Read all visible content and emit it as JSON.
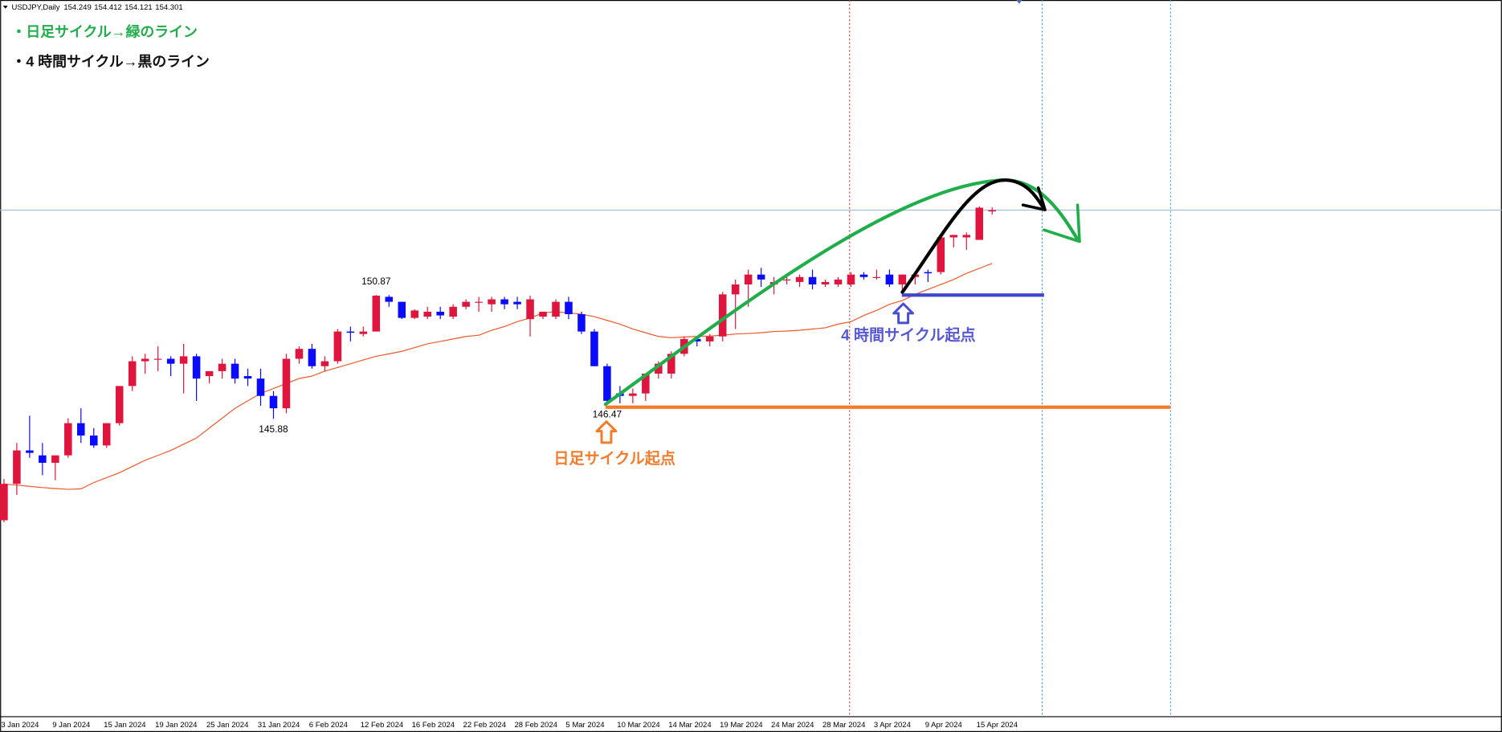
{
  "chart_data": {
    "type": "candlestick",
    "title": "USDJPY,Daily",
    "x": [
      "3 Jan 2024",
      null,
      null,
      null,
      "9 Jan 2024",
      null,
      null,
      null,
      "15 Jan 2024",
      null,
      null,
      null,
      "19 Jan 2024",
      null,
      null,
      null,
      "25 Jan 2024",
      null,
      null,
      null,
      "31 Jan 2024",
      null,
      null,
      null,
      "6 Feb 2024",
      null,
      null,
      null,
      "12 Feb 2024",
      null,
      null,
      null,
      "16 Feb 2024",
      null,
      null,
      null,
      "22 Feb 2024",
      null,
      null,
      null,
      "28 Feb 2024",
      null,
      null,
      null,
      "5 Mar 2024",
      null,
      null,
      null,
      "10 Mar 2024",
      null,
      null,
      null,
      "14 Mar 2024",
      null,
      null,
      null,
      "19 Mar 2024",
      null,
      null,
      null,
      "24 Mar 2024",
      null,
      null,
      null,
      "28 Mar 2024",
      null,
      null,
      null,
      "3 Apr 2024",
      null,
      null,
      null,
      "9 Apr 2024",
      null,
      null,
      null,
      "15 Apr 2024",
      null
    ],
    "open": [
      141.78,
      143.25,
      144.6,
      144.4,
      144.1,
      144.4,
      145.7,
      145.2,
      144.8,
      145.7,
      147.2,
      148.2,
      148.3,
      148.3,
      148.1,
      148.4,
      147.6,
      147.8,
      148.1,
      147.6,
      147.5,
      146.8,
      146.3,
      148.3,
      148.7,
      148.0,
      148.2,
      149.4,
      149.3,
      149.4,
      150.8,
      150.6,
      149.95,
      150.0,
      150.2,
      150.0,
      150.4,
      150.6,
      150.5,
      150.7,
      150.6,
      149.9,
      150.0,
      150.0,
      150.6,
      150.1,
      149.4,
      148.0,
      146.9,
      146.8,
      146.9,
      147.7,
      147.7,
      148.5,
      149.1,
      149.0,
      149.2,
      150.9,
      151.3,
      151.7,
      151.3,
      151.5,
      151.4,
      151.6,
      151.3,
      151.3,
      151.3,
      151.7,
      151.6,
      151.7,
      151.3,
      151.6,
      151.8,
      151.8,
      153.2,
      153.2,
      153.1,
      154.249
    ],
    "high": [
      143.44,
      144.9,
      146.0,
      144.9,
      144.4,
      145.9,
      146.3,
      145.5,
      145.7,
      147.2,
      148.4,
      148.5,
      148.8,
      148.4,
      148.9,
      148.5,
      147.8,
      148.3,
      148.3,
      147.9,
      147.9,
      147.0,
      148.5,
      148.8,
      148.9,
      148.4,
      149.5,
      149.6,
      149.6,
      150.87,
      150.87,
      150.6,
      150.3,
      150.4,
      150.4,
      150.5,
      150.7,
      150.8,
      150.8,
      150.8,
      150.8,
      150.85,
      150.2,
      150.7,
      150.8,
      150.2,
      149.5,
      148.1,
      147.2,
      147.1,
      147.7,
      148.2,
      148.6,
      149.2,
      149.2,
      149.3,
      151.0,
      151.5,
      151.9,
      151.97,
      151.6,
      151.6,
      151.7,
      151.9,
      151.5,
      151.6,
      151.8,
      151.8,
      151.9,
      151.9,
      151.7,
      151.8,
      151.9,
      153.3,
      153.3,
      153.4,
      154.45,
      154.412
    ],
    "low": [
      141.7,
      142.8,
      144.3,
      143.6,
      143.4,
      144.3,
      144.9,
      144.7,
      144.7,
      145.6,
      147.0,
      147.7,
      147.8,
      147.6,
      146.9,
      146.6,
      147.3,
      147.5,
      147.3,
      147.2,
      146.4,
      145.88,
      146.1,
      148.1,
      147.9,
      147.8,
      148.1,
      149.0,
      149.2,
      149.4,
      150.4,
      149.9,
      149.9,
      149.9,
      149.9,
      149.9,
      150.3,
      150.2,
      150.2,
      150.3,
      150.3,
      149.2,
      149.9,
      149.9,
      149.9,
      149.3,
      148.0,
      146.47,
      146.5,
      146.5,
      146.6,
      147.5,
      147.5,
      148.4,
      148.8,
      148.8,
      149.0,
      149.5,
      150.4,
      151.2,
      150.9,
      151.3,
      151.2,
      151.1,
      151.2,
      151.2,
      151.2,
      151.5,
      151.5,
      151.2,
      150.8,
      151.3,
      151.4,
      151.7,
      152.8,
      152.7,
      153.1,
      154.121
    ],
    "close": [
      143.25,
      144.6,
      144.5,
      144.1,
      144.4,
      145.7,
      145.2,
      144.8,
      145.7,
      147.2,
      148.2,
      148.3,
      148.3,
      148.1,
      148.4,
      147.5,
      147.8,
      148.1,
      147.5,
      147.5,
      146.8,
      146.3,
      148.3,
      148.7,
      148.0,
      148.2,
      149.4,
      149.35,
      149.4,
      150.85,
      150.6,
      149.95,
      150.25,
      150.2,
      150.05,
      150.4,
      150.6,
      150.6,
      150.7,
      150.5,
      150.5,
      150.7,
      150.2,
      150.6,
      150.1,
      149.4,
      148.0,
      146.6,
      146.8,
      146.9,
      147.7,
      148.1,
      148.5,
      149.1,
      149.0,
      149.2,
      150.9,
      151.3,
      151.7,
      151.5,
      151.4,
      151.5,
      151.6,
      151.3,
      151.4,
      151.5,
      151.7,
      151.6,
      151.6,
      151.3,
      151.7,
      151.7,
      151.75,
      153.2,
      153.3,
      153.3,
      154.4,
      154.301
    ],
    "up_color": "#e0153d",
    "down_color": "#0a0aff",
    "moving_average": {
      "color": "#f0582a",
      "values": [
        143.24,
        143.2,
        143.15,
        143.1,
        143.06,
        143.03,
        143.05,
        143.3,
        143.5,
        143.7,
        143.95,
        144.2,
        144.4,
        144.6,
        144.85,
        145.1,
        145.5,
        145.9,
        146.3,
        146.6,
        146.9,
        147.1,
        147.3,
        147.5,
        147.6,
        147.8,
        147.95,
        148.1,
        148.25,
        148.4,
        148.5,
        148.6,
        148.75,
        148.9,
        149.0,
        149.1,
        149.2,
        149.25,
        149.45,
        149.6,
        149.8,
        149.95,
        150.15,
        150.2,
        150.15,
        150.1,
        150.0,
        149.85,
        149.7,
        149.5,
        149.35,
        149.2,
        149.15,
        149.18,
        149.2,
        149.22,
        149.25,
        149.3,
        149.32,
        149.35,
        149.4,
        149.42,
        149.45,
        149.5,
        149.55,
        149.7,
        149.8,
        150.05,
        150.25,
        150.5,
        150.65,
        150.9,
        151.1,
        151.3,
        151.5,
        151.75,
        151.95,
        152.15
      ]
    },
    "ylim": [
      133.85,
      162.785
    ],
    "price_labels": [
      150.87,
      145.88,
      146.47
    ],
    "notes": [
      "・日足サイクル→緑のライン",
      "・4 時間サイクル→黒のライン"
    ],
    "start_labels": [
      "日足サイクル起点",
      "4 時間サイクル起点"
    ]
  }
}
